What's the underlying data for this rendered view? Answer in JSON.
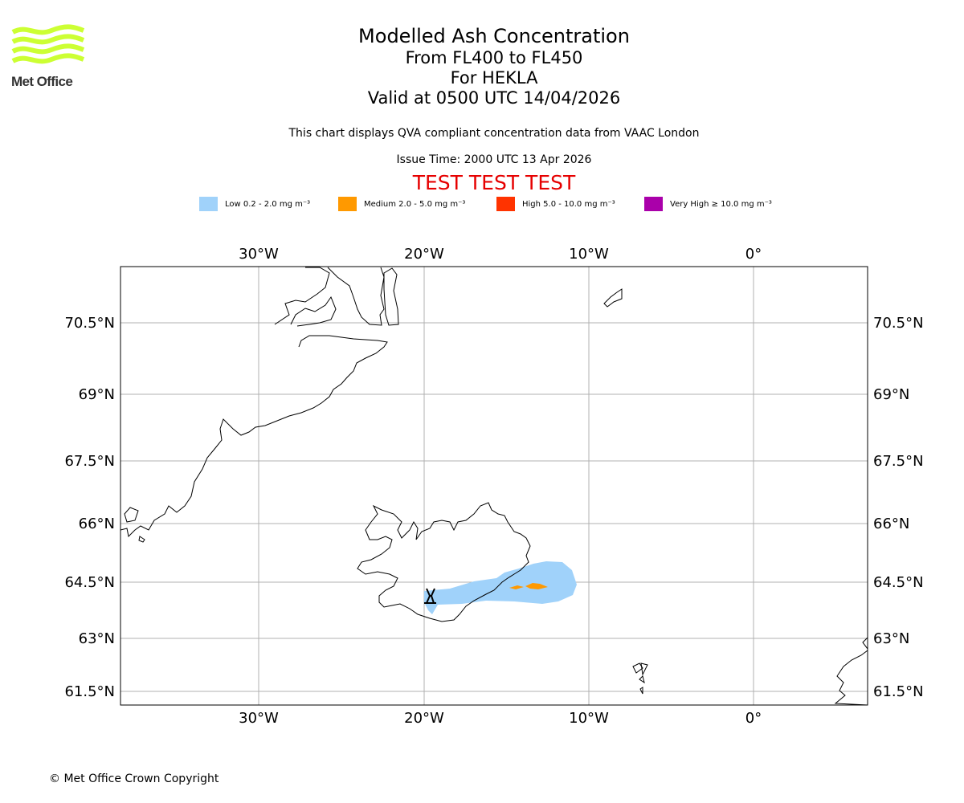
{
  "logo": {
    "name": "Met Office",
    "color": "#ccff33"
  },
  "title": {
    "line1": "Modelled Ash Concentration",
    "line2": "From FL400 to FL450",
    "line3": "For HEKLA",
    "line4": "Valid at 0500 UTC 14/04/2026"
  },
  "subtitle": "This chart displays QVA compliant concentration data from VAAC London",
  "issue_time": "Issue Time: 2000 UTC 13 Apr 2026",
  "test_banner": "TEST TEST TEST",
  "legend": [
    {
      "label": "Low 0.2 - 2.0 mg m⁻³",
      "color": "#a0d2fa"
    },
    {
      "label": "Medium 2.0 - 5.0 mg m⁻³",
      "color": "#ff9900"
    },
    {
      "label": "High 5.0 - 10.0 mg m⁻³",
      "color": "#ff3300"
    },
    {
      "label": "Very High ≥ 10.0 mg m⁻³",
      "color": "#aa00aa"
    }
  ],
  "map": {
    "lon_ticks": [
      "30°W",
      "20°W",
      "10°W",
      "0°"
    ],
    "lat_ticks": [
      "70.5°N",
      "69°N",
      "67.5°N",
      "66°N",
      "64.5°N",
      "63°N",
      "61.5°N"
    ],
    "volcano": "HEKLA"
  },
  "copyright": "© Met Office Crown Copyright"
}
